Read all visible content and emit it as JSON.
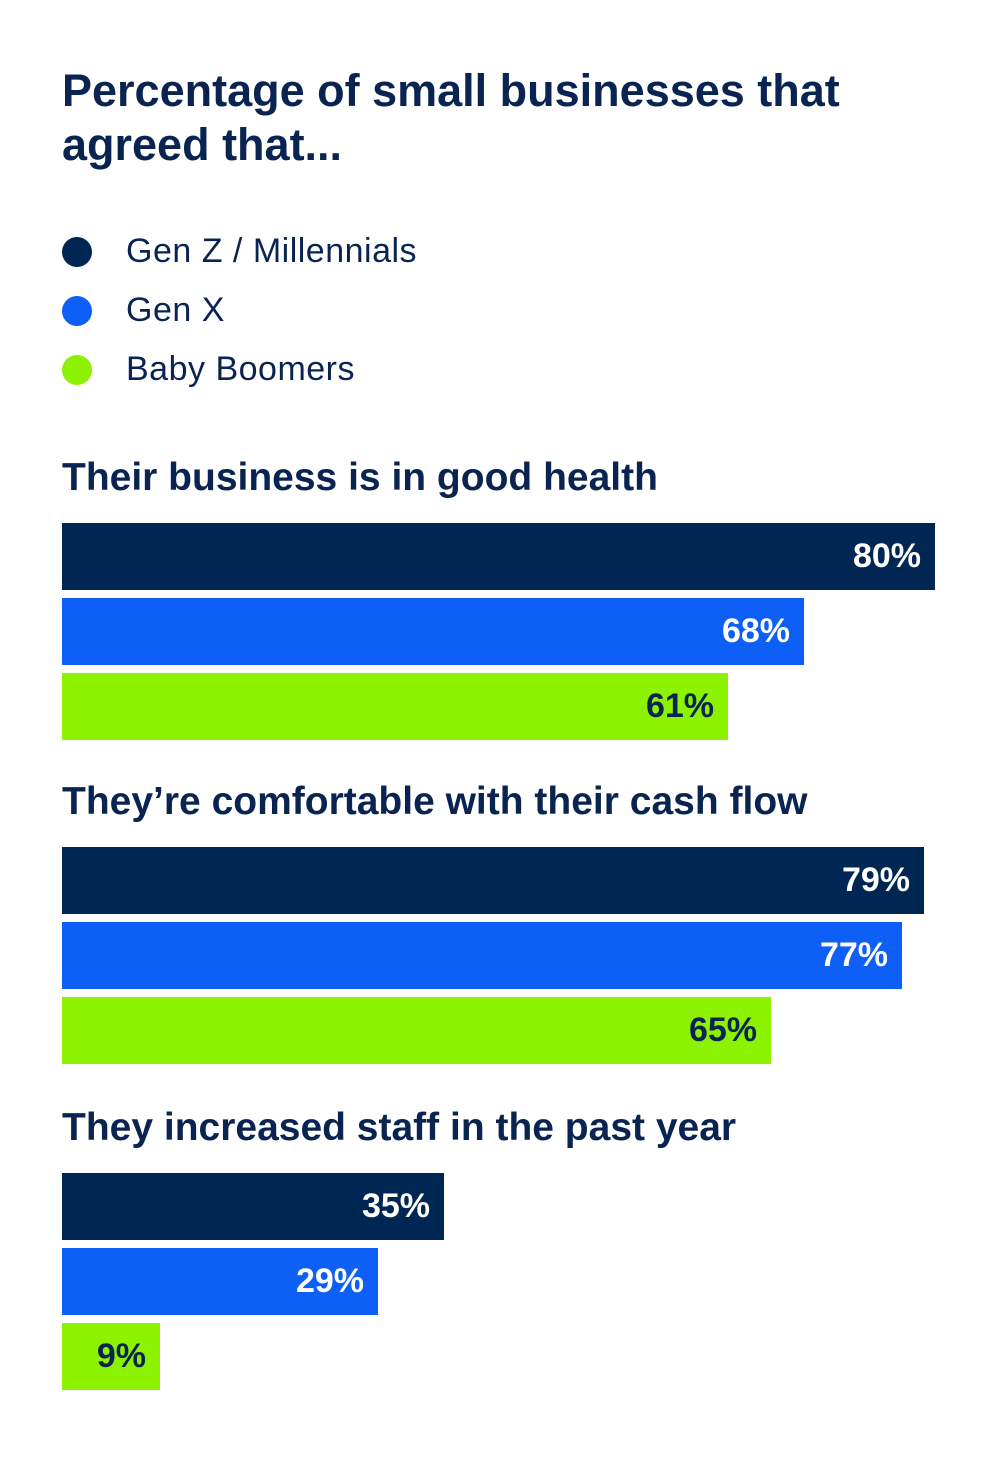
{
  "chart_data": {
    "type": "bar",
    "orientation": "horizontal",
    "title": "Percentage of small businesses that agreed that...",
    "categories": [
      "Their business is in good health",
      "They’re comfortable with their cash flow",
      "They increased staff in the past year"
    ],
    "series": [
      {
        "name": "Gen Z / Millennials",
        "color": "#002654",
        "values": [
          80,
          79,
          35
        ],
        "value_labels": [
          "80%",
          "79%",
          "35%"
        ],
        "label_color": "#ffffff"
      },
      {
        "name": "Gen X",
        "color": "#0d5ff5",
        "values": [
          68,
          77,
          29
        ],
        "value_labels": [
          "68%",
          "77%",
          "29%"
        ],
        "label_color": "#ffffff"
      },
      {
        "name": "Baby Boomers",
        "color": "#8df200",
        "values": [
          61,
          65,
          9
        ],
        "value_labels": [
          "61%",
          "65%",
          "9%"
        ],
        "label_color": "#0a2452"
      }
    ],
    "unit": "%",
    "xlim": [
      0,
      80
    ],
    "grid": false,
    "legend": "top-left"
  }
}
